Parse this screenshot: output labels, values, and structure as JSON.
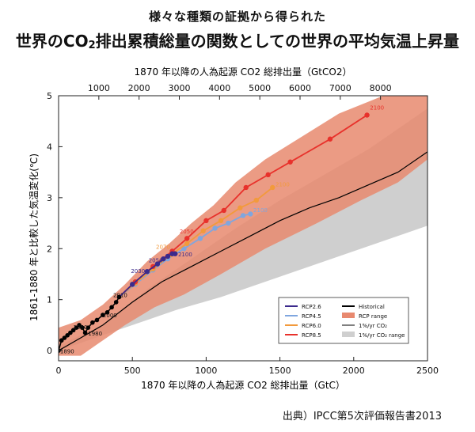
{
  "header": {
    "title_line1": "様々な種類の証拠から得られた",
    "title_line2_prefix": "世界のCO",
    "title_line2_sub": "2",
    "title_line2_suffix": "排出累積総量の関数としての世界の平均気温上昇量"
  },
  "source": "出典）IPCC第5次評価報告書2013",
  "chart_data": {
    "type": "line",
    "top_axis": {
      "label": "1870 年以降の人為起源 CO2 総排出量（GtCO2）",
      "ticks": [
        "1000",
        "2000",
        "3000",
        "4000",
        "5000",
        "6000",
        "7000",
        "8000"
      ],
      "tick_values_gtco2": [
        1000,
        2000,
        3000,
        4000,
        5000,
        6000,
        7000,
        8000
      ]
    },
    "xlabel": "1870 年以降の人為起源 CO2 総排出量（GtC）",
    "ylabel": "1861-1880 年と比較した気温変化(℃)",
    "xlim": [
      0,
      2500
    ],
    "ylim": [
      -0.2,
      5
    ],
    "xticks": [
      "0",
      "500",
      "1000",
      "1500",
      "2000",
      "2500"
    ],
    "yticks": [
      "0",
      "1",
      "2",
      "3",
      "4",
      "5"
    ],
    "colors": {
      "rcp_range": "#e8896f",
      "pct_range": "#cfcfcf",
      "rcp26": "#3b2a8c",
      "rcp45": "#7fa6df",
      "rcp60": "#f29a3c",
      "rcp85": "#e8312b",
      "historical": "#000000",
      "pct_line": "#000000"
    },
    "rcp_range": {
      "upper": [
        [
          0,
          0.45
        ],
        [
          150,
          0.6
        ],
        [
          300,
          0.9
        ],
        [
          450,
          1.3
        ],
        [
          600,
          1.75
        ],
        [
          750,
          2.1
        ],
        [
          900,
          2.5
        ],
        [
          1050,
          2.85
        ],
        [
          1200,
          3.3
        ],
        [
          1400,
          3.75
        ],
        [
          1650,
          4.2
        ],
        [
          1900,
          4.65
        ],
        [
          2200,
          5.0
        ],
        [
          2500,
          5.0
        ]
      ],
      "lower": [
        [
          2500,
          3.75
        ],
        [
          2300,
          3.3
        ],
        [
          2050,
          2.95
        ],
        [
          1750,
          2.5
        ],
        [
          1400,
          2.0
        ],
        [
          1100,
          1.5
        ],
        [
          850,
          1.1
        ],
        [
          650,
          0.85
        ],
        [
          450,
          0.5
        ],
        [
          300,
          0.2
        ],
        [
          150,
          -0.1
        ],
        [
          0,
          -0.1
        ]
      ]
    },
    "pct_range": {
      "upper": [
        [
          0,
          0.1
        ],
        [
          300,
          0.5
        ],
        [
          600,
          1.2
        ],
        [
          900,
          1.8
        ],
        [
          1200,
          2.4
        ],
        [
          1500,
          2.95
        ],
        [
          1800,
          3.45
        ],
        [
          2100,
          3.95
        ],
        [
          2400,
          4.55
        ],
        [
          2500,
          4.75
        ]
      ],
      "lower": [
        [
          2500,
          2.45
        ],
        [
          2200,
          2.15
        ],
        [
          1800,
          1.75
        ],
        [
          1400,
          1.35
        ],
        [
          1100,
          1.05
        ],
        [
          800,
          0.8
        ],
        [
          600,
          0.6
        ],
        [
          400,
          0.4
        ],
        [
          200,
          0.2
        ],
        [
          0,
          0.0
        ]
      ]
    },
    "pct_line": [
      [
        0,
        0.0
      ],
      [
        150,
        0.25
      ],
      [
        300,
        0.5
      ],
      [
        500,
        0.95
      ],
      [
        700,
        1.35
      ],
      [
        900,
        1.65
      ],
      [
        1100,
        1.95
      ],
      [
        1300,
        2.25
      ],
      [
        1500,
        2.55
      ],
      [
        1700,
        2.8
      ],
      [
        1900,
        3.0
      ],
      [
        2100,
        3.25
      ],
      [
        2300,
        3.5
      ],
      [
        2500,
        3.9
      ]
    ],
    "historical": {
      "name": "Historical",
      "points": [
        [
          0,
          0.0
        ],
        [
          20,
          0.2
        ],
        [
          40,
          0.25
        ],
        [
          60,
          0.3
        ],
        [
          80,
          0.35
        ],
        [
          100,
          0.4
        ],
        [
          120,
          0.45
        ],
        [
          140,
          0.5
        ],
        [
          160,
          0.45
        ],
        [
          180,
          0.35
        ],
        [
          200,
          0.45
        ],
        [
          230,
          0.55
        ],
        [
          260,
          0.6
        ],
        [
          300,
          0.7
        ],
        [
          330,
          0.75
        ],
        [
          360,
          0.85
        ],
        [
          390,
          0.95
        ],
        [
          410,
          1.05
        ]
      ],
      "year_labels": [
        {
          "text": "1890",
          "x": 10,
          "y": -0.05
        },
        {
          "text": "1950",
          "x": 100,
          "y": 0.42
        },
        {
          "text": "1980",
          "x": 200,
          "y": 0.3
        },
        {
          "text": "2000",
          "x": 300,
          "y": 0.65
        },
        {
          "text": "2010",
          "x": 370,
          "y": 1.05
        }
      ]
    },
    "series": [
      {
        "name": "RCP2.6",
        "points": [
          [
            410,
            1.05
          ],
          [
            500,
            1.3
          ],
          [
            600,
            1.55
          ],
          [
            670,
            1.7
          ],
          [
            710,
            1.8
          ],
          [
            740,
            1.85
          ],
          [
            770,
            1.9
          ],
          [
            790,
            1.9
          ]
        ],
        "labels": [
          {
            "text": "2030",
            "x": 490,
            "y": 1.52
          },
          {
            "text": "2050",
            "x": 610,
            "y": 1.73
          },
          {
            "text": "2100",
            "x": 810,
            "y": 1.85
          }
        ]
      },
      {
        "name": "RCP4.5",
        "points": [
          [
            410,
            1.05
          ],
          [
            520,
            1.3
          ],
          [
            640,
            1.58
          ],
          [
            740,
            1.8
          ],
          [
            850,
            2.0
          ],
          [
            960,
            2.2
          ],
          [
            1060,
            2.4
          ],
          [
            1150,
            2.5
          ],
          [
            1250,
            2.65
          ],
          [
            1300,
            2.68
          ]
        ],
        "labels": [
          {
            "text": "2100",
            "x": 1320,
            "y": 2.72
          }
        ]
      },
      {
        "name": "RCP6.0",
        "points": [
          [
            410,
            1.05
          ],
          [
            520,
            1.32
          ],
          [
            640,
            1.6
          ],
          [
            760,
            1.88
          ],
          [
            870,
            2.1
          ],
          [
            980,
            2.35
          ],
          [
            1100,
            2.55
          ],
          [
            1230,
            2.8
          ],
          [
            1340,
            2.95
          ],
          [
            1450,
            3.2
          ]
        ],
        "labels": [
          {
            "text": "2100",
            "x": 1470,
            "y": 3.22
          },
          {
            "text": "2070",
            "x": 660,
            "y": 2.0
          }
        ]
      },
      {
        "name": "RCP8.5",
        "points": [
          [
            410,
            1.05
          ],
          [
            520,
            1.35
          ],
          [
            640,
            1.65
          ],
          [
            770,
            1.95
          ],
          [
            870,
            2.2
          ],
          [
            1000,
            2.55
          ],
          [
            1120,
            2.75
          ],
          [
            1270,
            3.2
          ],
          [
            1420,
            3.45
          ],
          [
            1570,
            3.7
          ],
          [
            1840,
            4.15
          ],
          [
            2090,
            4.62
          ]
        ],
        "labels": [
          {
            "text": "2100",
            "x": 2110,
            "y": 4.73
          },
          {
            "text": "2050",
            "x": 820,
            "y": 2.3
          }
        ]
      }
    ],
    "legend": {
      "placement": "bottom-right",
      "items": [
        {
          "label": "RCP2.6",
          "kind": "line",
          "color": "#3b2a8c"
        },
        {
          "label": "RCP4.5",
          "kind": "line",
          "color": "#7fa6df"
        },
        {
          "label": "RCP6.0",
          "kind": "line",
          "color": "#f29a3c"
        },
        {
          "label": "RCP8.5",
          "kind": "line",
          "color": "#e8312b"
        },
        {
          "label": "Historical",
          "kind": "line",
          "color": "#000000"
        },
        {
          "label": "RCP range",
          "kind": "patch",
          "color": "#e8896f"
        },
        {
          "label": "1%/yr CO₂",
          "kind": "thin",
          "color": "#000000"
        },
        {
          "label": "1%/yr CO₂ range",
          "kind": "patch",
          "color": "#cfcfcf"
        }
      ]
    }
  }
}
